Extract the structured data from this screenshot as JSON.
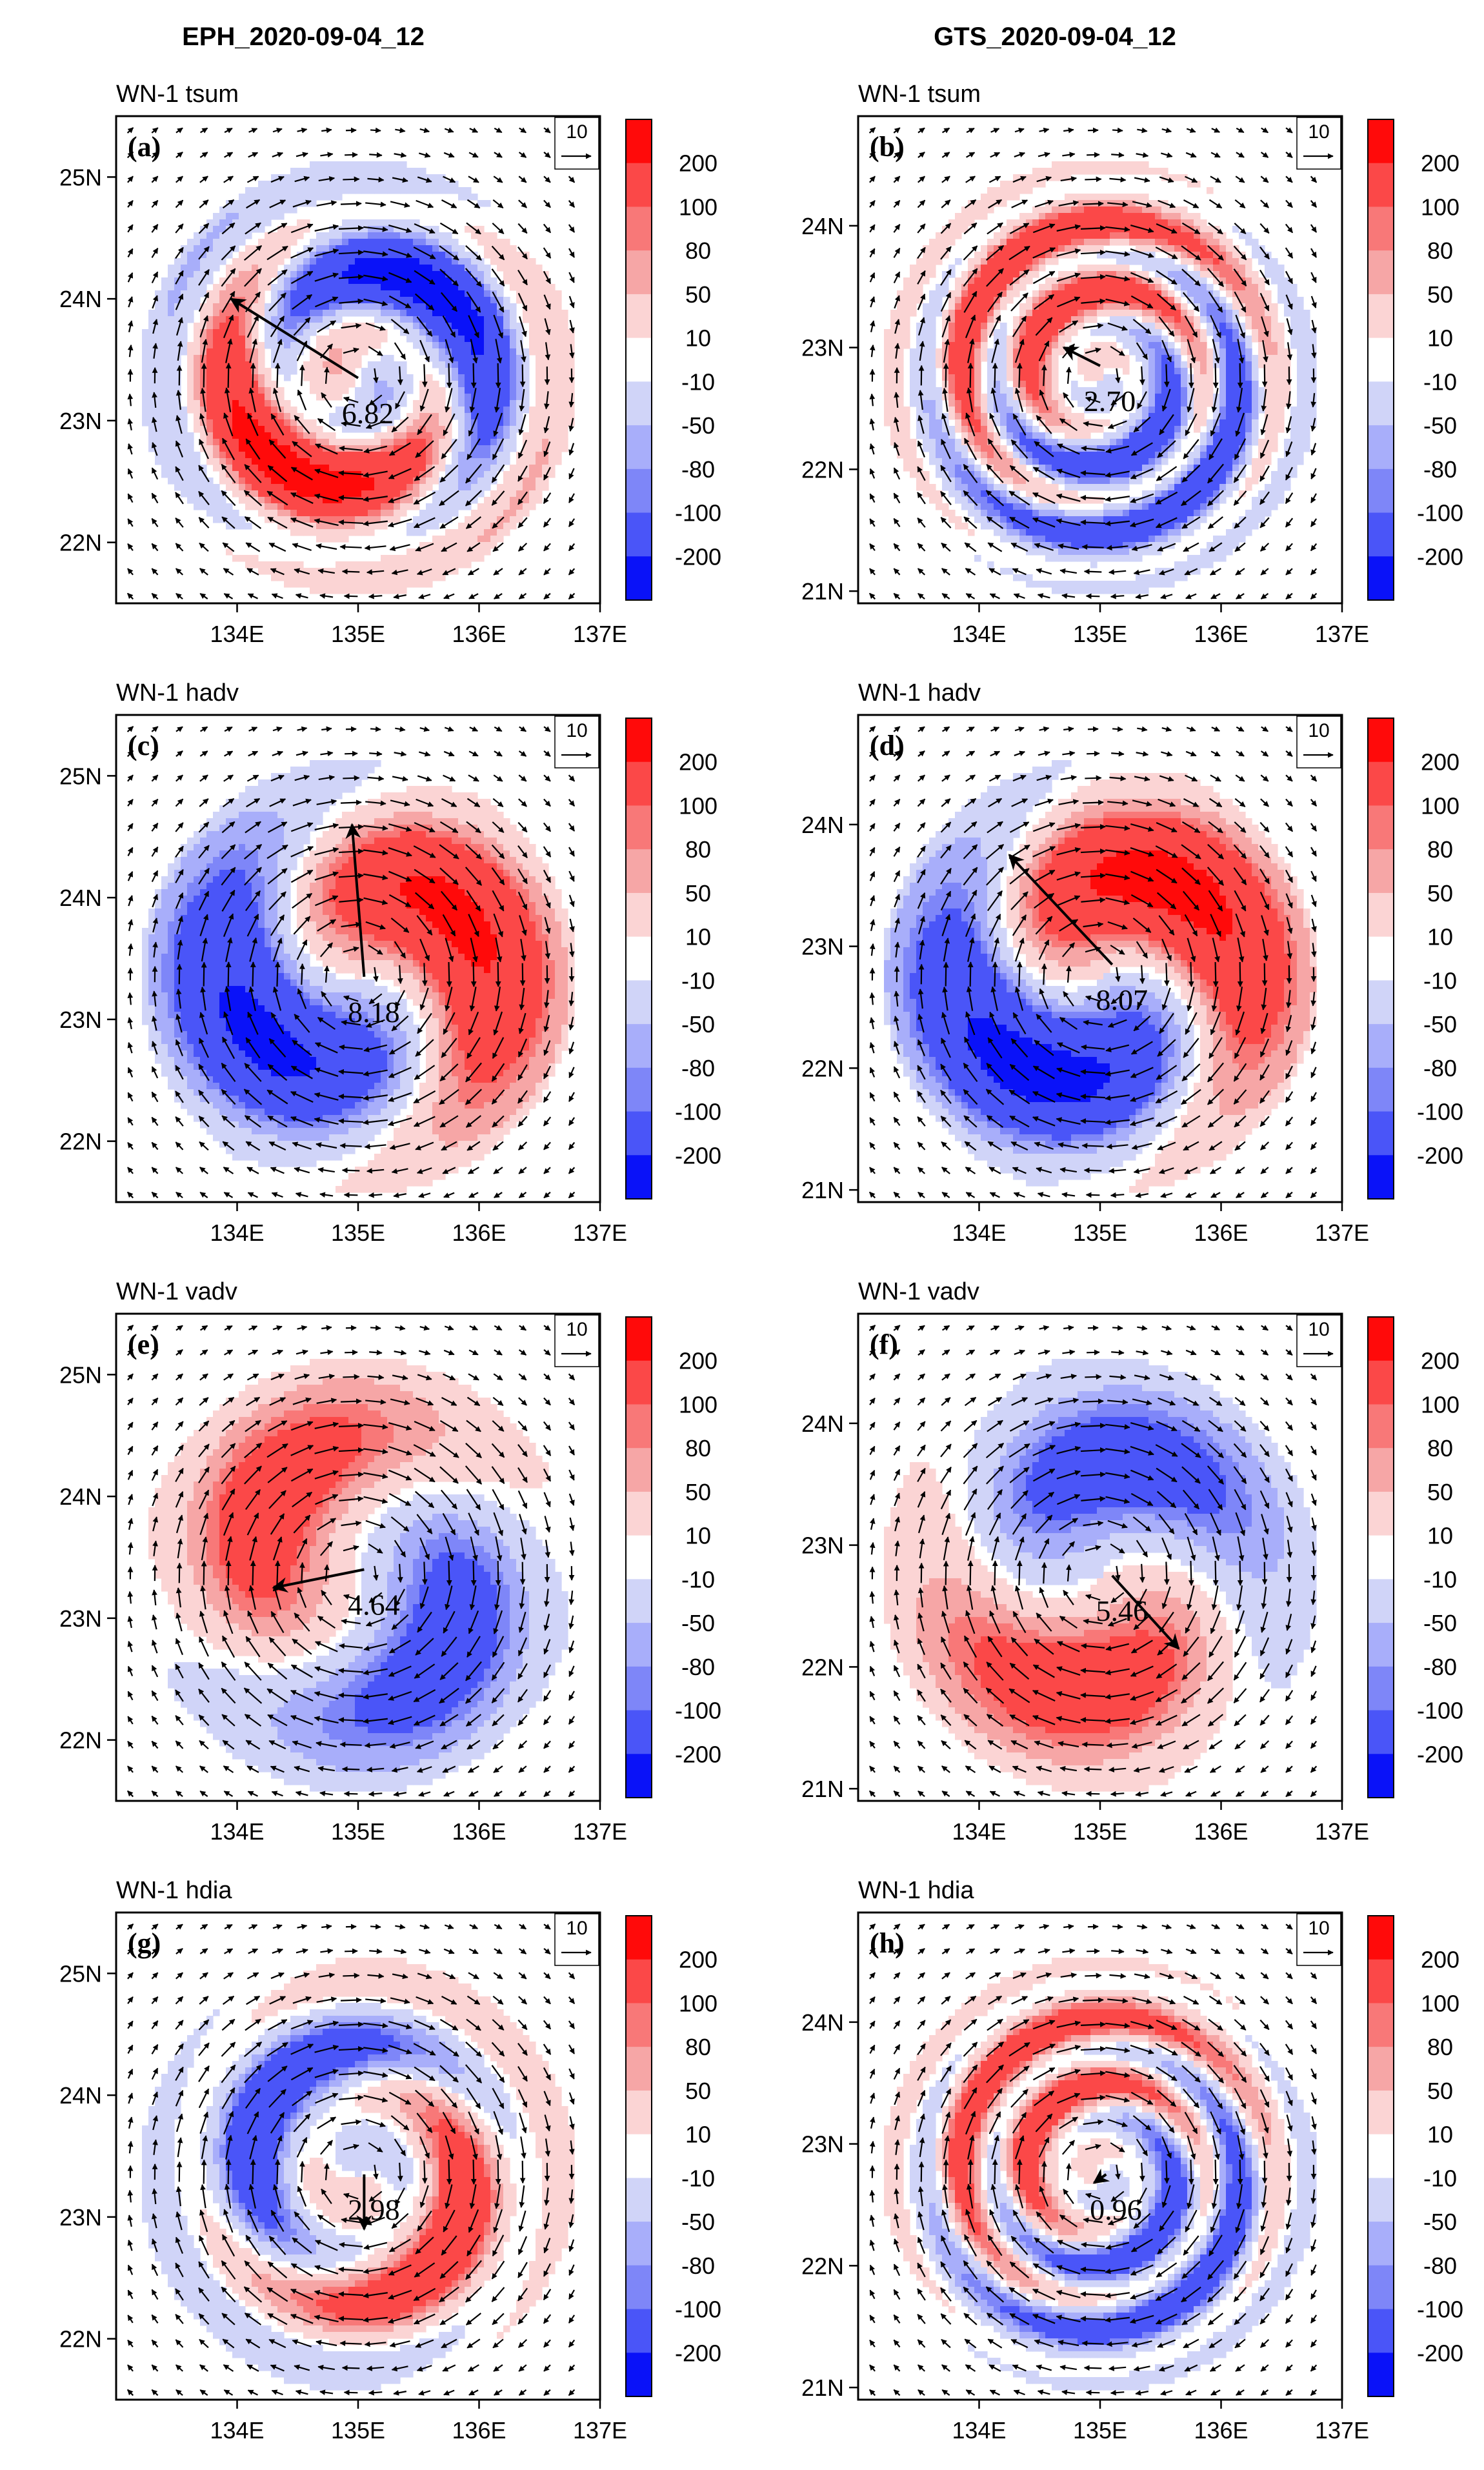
{
  "columns": [
    {
      "title": "EPH_2020-09-04_12"
    },
    {
      "title": "GTS_2020-09-04_12"
    }
  ],
  "colorbar": {
    "levels": [
      "200",
      "100",
      "80",
      "50",
      "10",
      "-10",
      "-50",
      "-80",
      "-100",
      "-200"
    ],
    "colors": [
      "#ff0a0a",
      "#fb4848",
      "#f87878",
      "#f6a6a6",
      "#fbd4d4",
      "#ffffff",
      "#d0d4f8",
      "#a8aefa",
      "#7e86f8",
      "#4a55f8",
      "#0a12f8"
    ]
  },
  "reference_vector": {
    "value": "10"
  },
  "chart_data": [
    {
      "type": "heatmap",
      "id": "a",
      "label": "(a)",
      "title": "WN-1 tsum",
      "column": "EPH_2020-09-04_12",
      "x_ticks": [
        "134E",
        "135E",
        "136E",
        "137E"
      ],
      "y_ticks": [
        "25N",
        "24N",
        "23N",
        "22N"
      ],
      "xlim": [
        133.0,
        137.0
      ],
      "ylim": [
        21.5,
        25.5
      ],
      "magnitude_label": "6.82",
      "max_vector": {
        "x0": 135.0,
        "y0": 23.35,
        "x1": 133.95,
        "y1": 24.0
      },
      "pattern": {
        "phase": -1.4,
        "red_angle_deg": 150,
        "twist": 1.2,
        "rings": 2,
        "strength": 170
      }
    },
    {
      "type": "heatmap",
      "id": "b",
      "label": "(b)",
      "title": "WN-1 tsum",
      "column": "GTS_2020-09-04_12",
      "x_ticks": [
        "134E",
        "135E",
        "136E",
        "137E"
      ],
      "y_ticks": [
        "24N",
        "23N",
        "22N",
        "21N"
      ],
      "xlim": [
        133.0,
        137.0
      ],
      "ylim": [
        20.9,
        24.9
      ],
      "magnitude_label": "2.70",
      "max_vector": {
        "x0": 135.0,
        "y0": 22.85,
        "x1": 134.7,
        "y1": 23.0
      },
      "pattern": {
        "phase": 0,
        "red_angle_deg": 150,
        "twist": 3.0,
        "rings": 3,
        "strength": 140
      }
    },
    {
      "type": "heatmap",
      "id": "c",
      "label": "(c)",
      "title": "WN-1 hadv",
      "column": "EPH_2020-09-04_12",
      "x_ticks": [
        "134E",
        "135E",
        "136E",
        "137E"
      ],
      "y_ticks": [
        "25N",
        "24N",
        "23N",
        "22N"
      ],
      "xlim": [
        133.0,
        137.0
      ],
      "ylim": [
        21.5,
        25.5
      ],
      "magnitude_label": "8.18",
      "max_vector": {
        "x0": 135.05,
        "y0": 23.35,
        "x1": 134.95,
        "y1": 24.6
      },
      "pattern": {
        "phase": 0.4,
        "red_angle_deg": 100,
        "twist": 0.6,
        "rings": 1,
        "strength": 150
      }
    },
    {
      "type": "heatmap",
      "id": "d",
      "label": "(d)",
      "title": "WN-1 hadv",
      "column": "GTS_2020-09-04_12",
      "x_ticks": [
        "134E",
        "135E",
        "136E",
        "137E"
      ],
      "y_ticks": [
        "24N",
        "23N",
        "22N",
        "21N"
      ],
      "xlim": [
        133.0,
        137.0
      ],
      "ylim": [
        20.9,
        24.9
      ],
      "magnitude_label": "8.07",
      "max_vector": {
        "x0": 135.1,
        "y0": 22.85,
        "x1": 134.25,
        "y1": 23.75
      },
      "pattern": {
        "phase": 0.8,
        "red_angle_deg": 140,
        "twist": 0.7,
        "rings": 1,
        "strength": 160
      }
    },
    {
      "type": "heatmap",
      "id": "e",
      "label": "(e)",
      "title": "WN-1 vadv",
      "column": "EPH_2020-09-04_12",
      "x_ticks": [
        "134E",
        "135E",
        "136E",
        "137E"
      ],
      "y_ticks": [
        "25N",
        "24N",
        "23N",
        "22N"
      ],
      "xlim": [
        133.0,
        137.0
      ],
      "ylim": [
        21.5,
        25.5
      ],
      "magnitude_label": "4.64",
      "max_vector": {
        "x0": 135.05,
        "y0": 23.4,
        "x1": 134.3,
        "y1": 23.25
      },
      "pattern": {
        "phase": -0.6,
        "red_angle_deg": 180,
        "twist": 0.5,
        "rings": 1,
        "strength": 100
      }
    },
    {
      "type": "heatmap",
      "id": "f",
      "label": "(f)",
      "title": "WN-1 vadv",
      "column": "GTS_2020-09-04_12",
      "x_ticks": [
        "134E",
        "135E",
        "136E",
        "137E"
      ],
      "y_ticks": [
        "24N",
        "23N",
        "22N",
        "21N"
      ],
      "xlim": [
        133.0,
        137.0
      ],
      "ylim": [
        20.9,
        24.9
      ],
      "magnitude_label": "5.46",
      "max_vector": {
        "x0": 135.1,
        "y0": 22.75,
        "x1": 135.65,
        "y1": 22.15
      },
      "pattern": {
        "phase": 0.5,
        "red_angle_deg": -40,
        "twist": 0.5,
        "rings": 1,
        "strength": 100
      }
    },
    {
      "type": "heatmap",
      "id": "g",
      "label": "(g)",
      "title": "WN-1 hdia",
      "column": "EPH_2020-09-04_12",
      "x_ticks": [
        "134E",
        "135E",
        "136E",
        "137E"
      ],
      "y_ticks": [
        "25N",
        "24N",
        "23N",
        "22N"
      ],
      "xlim": [
        133.0,
        137.0
      ],
      "ylim": [
        21.5,
        25.5
      ],
      "magnitude_label": "2.98",
      "max_vector": {
        "x0": 135.05,
        "y0": 23.35,
        "x1": 135.05,
        "y1": 22.9
      },
      "pattern": {
        "phase": 1.0,
        "red_angle_deg": -60,
        "twist": 1.4,
        "rings": 2,
        "strength": 120
      }
    },
    {
      "type": "heatmap",
      "id": "h",
      "label": "(h)",
      "title": "WN-1 hdia",
      "column": "GTS_2020-09-04_12",
      "x_ticks": [
        "134E",
        "135E",
        "136E",
        "137E"
      ],
      "y_ticks": [
        "24N",
        "23N",
        "22N",
        "21N"
      ],
      "xlim": [
        133.0,
        137.0
      ],
      "ylim": [
        20.9,
        24.9
      ],
      "magnitude_label": "0.96",
      "max_vector": {
        "x0": 135.05,
        "y0": 22.75,
        "x1": 134.95,
        "y1": 22.68
      },
      "pattern": {
        "phase": 0,
        "red_angle_deg": 180,
        "twist": 3.2,
        "rings": 3,
        "strength": 130
      }
    }
  ]
}
